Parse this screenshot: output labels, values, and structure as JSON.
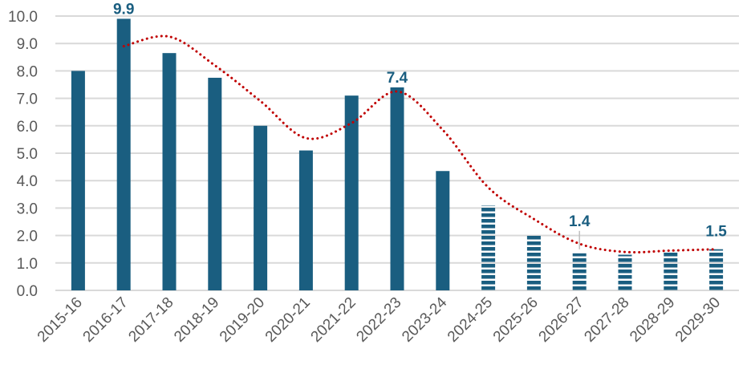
{
  "chart_data": {
    "type": "bar",
    "title": "",
    "xlabel": "",
    "ylabel": "",
    "ylim": [
      0,
      10
    ],
    "yticks": [
      "0.0",
      "1.0",
      "2.0",
      "3.0",
      "4.0",
      "5.0",
      "6.0",
      "7.0",
      "8.0",
      "9.0",
      "10.0"
    ],
    "grid": true,
    "legend": "none",
    "categories": [
      "2015-16",
      "2016-17",
      "2017-18",
      "2018-19",
      "2019-20",
      "2020-21",
      "2021-22",
      "2022-23",
      "2023-24",
      "2024-25",
      "2025-26",
      "2026-27",
      "2027-28",
      "2028-29",
      "2029-30"
    ],
    "series": [
      {
        "type": "bar",
        "values": [
          8.0,
          9.9,
          8.65,
          7.75,
          6.0,
          5.1,
          7.1,
          7.4,
          4.35,
          3.1,
          2.0,
          1.35,
          1.3,
          1.45,
          1.5
        ],
        "forecast_from": "2024-25",
        "color": "#1a5e80",
        "forecast_style": "horizontal-stripes"
      },
      {
        "type": "line",
        "style": "dotted",
        "color": "#c00000",
        "values": [
          null,
          8.9,
          9.25,
          8.2,
          6.9,
          5.55,
          6.1,
          7.25,
          5.85,
          3.75,
          2.6,
          1.7,
          1.4,
          1.45,
          1.5
        ]
      }
    ],
    "data_labels": [
      {
        "category": "2016-17",
        "text": "9.9"
      },
      {
        "category": "2022-23",
        "text": "7.4"
      },
      {
        "category": "2026-27",
        "text": "1.4"
      },
      {
        "category": "2029-30",
        "text": "1.5"
      }
    ]
  }
}
